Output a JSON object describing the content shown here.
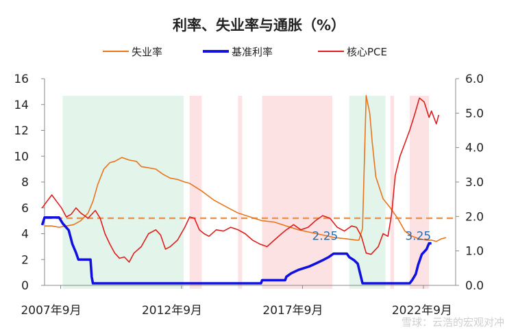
{
  "chart_data": {
    "type": "line",
    "title": "利率、失业率与通胀（%）",
    "x_tick_labels": [
      "2007年9月",
      "2012年9月",
      "2017年9月",
      "2022年9月"
    ],
    "x_ticks_date": [
      2007.667,
      2012.667,
      2017.667,
      2022.667
    ],
    "x_range": [
      2007.0,
      2024.0
    ],
    "y_left": {
      "ylim": [
        0,
        16
      ],
      "ticks": [
        "0",
        "2",
        "4",
        "6",
        "8",
        "10",
        "12",
        "14",
        "16"
      ]
    },
    "y_right": {
      "ylim": [
        0,
        6
      ],
      "ticks": [
        "0.0",
        "1.0",
        "2.0",
        "3.0",
        "4.0",
        "5.0",
        "6.0"
      ]
    },
    "legend": {
      "placement": "top"
    },
    "series": [
      {
        "name": "失业率",
        "color": "#e8741c",
        "axis": "left",
        "points": [
          [
            2007.0,
            4.6
          ],
          [
            2007.3,
            4.6
          ],
          [
            2007.6,
            4.5
          ],
          [
            2007.9,
            4.6
          ],
          [
            2008.2,
            4.7
          ],
          [
            2008.5,
            5.0
          ],
          [
            2008.8,
            5.6
          ],
          [
            2009.0,
            6.5
          ],
          [
            2009.2,
            7.8
          ],
          [
            2009.45,
            9.0
          ],
          [
            2009.7,
            9.5
          ],
          [
            2009.9,
            9.6
          ],
          [
            2010.2,
            9.9
          ],
          [
            2010.5,
            9.7
          ],
          [
            2010.8,
            9.6
          ],
          [
            2011.0,
            9.2
          ],
          [
            2011.3,
            9.1
          ],
          [
            2011.6,
            9.0
          ],
          [
            2011.9,
            8.6
          ],
          [
            2012.2,
            8.3
          ],
          [
            2012.5,
            8.2
          ],
          [
            2012.8,
            8.0
          ],
          [
            2013.0,
            7.9
          ],
          [
            2013.5,
            7.3
          ],
          [
            2014.0,
            6.6
          ],
          [
            2014.5,
            6.1
          ],
          [
            2015.0,
            5.6
          ],
          [
            2015.5,
            5.3
          ],
          [
            2016.0,
            5.0
          ],
          [
            2016.5,
            4.9
          ],
          [
            2017.0,
            4.6
          ],
          [
            2017.5,
            4.3
          ],
          [
            2018.0,
            4.1
          ],
          [
            2018.5,
            3.9
          ],
          [
            2019.0,
            3.7
          ],
          [
            2019.5,
            3.6
          ],
          [
            2019.9,
            3.5
          ],
          [
            2020.0,
            3.5
          ],
          [
            2020.15,
            4.4
          ],
          [
            2020.3,
            14.7
          ],
          [
            2020.45,
            13.3
          ],
          [
            2020.55,
            11.1
          ],
          [
            2020.7,
            8.4
          ],
          [
            2021.0,
            6.7
          ],
          [
            2021.3,
            6.0
          ],
          [
            2021.6,
            5.2
          ],
          [
            2021.9,
            4.2
          ],
          [
            2022.2,
            3.8
          ],
          [
            2022.5,
            3.6
          ],
          [
            2022.8,
            3.5
          ],
          [
            2023.0,
            3.5
          ],
          [
            2023.2,
            3.4
          ],
          [
            2023.4,
            3.6
          ],
          [
            2023.6,
            3.7
          ]
        ]
      },
      {
        "name": "基准利率",
        "color": "#1010e0",
        "axis": "right",
        "points": [
          [
            2006.9,
            1.75
          ],
          [
            2007.0,
            1.97
          ],
          [
            2007.6,
            1.97
          ],
          [
            2007.75,
            1.8
          ],
          [
            2008.0,
            1.6
          ],
          [
            2008.15,
            1.2
          ],
          [
            2008.3,
            0.95
          ],
          [
            2008.4,
            0.75
          ],
          [
            2008.9,
            0.75
          ],
          [
            2008.95,
            0.25
          ],
          [
            2009.0,
            0.06
          ],
          [
            2015.95,
            0.06
          ],
          [
            2016.0,
            0.15
          ],
          [
            2016.95,
            0.15
          ],
          [
            2017.0,
            0.25
          ],
          [
            2017.2,
            0.35
          ],
          [
            2017.5,
            0.45
          ],
          [
            2017.95,
            0.55
          ],
          [
            2018.2,
            0.63
          ],
          [
            2018.5,
            0.73
          ],
          [
            2018.75,
            0.82
          ],
          [
            2018.95,
            0.92
          ],
          [
            2019.5,
            0.92
          ],
          [
            2019.6,
            0.82
          ],
          [
            2019.8,
            0.73
          ],
          [
            2019.95,
            0.63
          ],
          [
            2020.15,
            0.06
          ],
          [
            2022.1,
            0.06
          ],
          [
            2022.2,
            0.15
          ],
          [
            2022.35,
            0.33
          ],
          [
            2022.45,
            0.6
          ],
          [
            2022.6,
            0.9
          ],
          [
            2022.8,
            1.05
          ],
          [
            2022.9,
            1.22
          ],
          [
            2023.0,
            1.22
          ]
        ]
      },
      {
        "name": "核心PCE",
        "color": "#e01b1b",
        "axis": "left",
        "points": [
          [
            2006.9,
            6.0
          ],
          [
            2007.1,
            6.5
          ],
          [
            2007.3,
            7.0
          ],
          [
            2007.5,
            6.5
          ],
          [
            2007.7,
            6.0
          ],
          [
            2007.9,
            5.3
          ],
          [
            2008.1,
            5.5
          ],
          [
            2008.3,
            6.0
          ],
          [
            2008.5,
            5.6
          ],
          [
            2008.8,
            5.2
          ],
          [
            2009.1,
            5.8
          ],
          [
            2009.3,
            5.2
          ],
          [
            2009.5,
            4.0
          ],
          [
            2009.7,
            3.2
          ],
          [
            2009.9,
            2.5
          ],
          [
            2010.1,
            2.1
          ],
          [
            2010.3,
            2.2
          ],
          [
            2010.5,
            1.8
          ],
          [
            2010.7,
            2.5
          ],
          [
            2011.0,
            3.0
          ],
          [
            2011.3,
            4.0
          ],
          [
            2011.6,
            4.3
          ],
          [
            2011.8,
            3.9
          ],
          [
            2012.0,
            2.8
          ],
          [
            2012.2,
            3.0
          ],
          [
            2012.5,
            3.5
          ],
          [
            2012.8,
            4.5
          ],
          [
            2013.0,
            5.3
          ],
          [
            2013.2,
            5.2
          ],
          [
            2013.4,
            4.3
          ],
          [
            2013.6,
            4.0
          ],
          [
            2013.8,
            3.8
          ],
          [
            2014.1,
            4.3
          ],
          [
            2014.4,
            4.2
          ],
          [
            2014.7,
            4.5
          ],
          [
            2015.0,
            4.3
          ],
          [
            2015.3,
            4.0
          ],
          [
            2015.6,
            3.5
          ],
          [
            2015.9,
            3.2
          ],
          [
            2016.2,
            3.0
          ],
          [
            2016.5,
            3.5
          ],
          [
            2016.8,
            4.0
          ],
          [
            2017.0,
            4.3
          ],
          [
            2017.3,
            4.7
          ],
          [
            2017.6,
            4.3
          ],
          [
            2017.9,
            4.5
          ],
          [
            2018.2,
            5.0
          ],
          [
            2018.5,
            5.4
          ],
          [
            2018.8,
            5.2
          ],
          [
            2019.1,
            4.5
          ],
          [
            2019.4,
            4.2
          ],
          [
            2019.7,
            4.6
          ],
          [
            2019.9,
            4.5
          ],
          [
            2020.1,
            3.8
          ],
          [
            2020.3,
            2.5
          ],
          [
            2020.5,
            2.4
          ],
          [
            2020.8,
            3.0
          ],
          [
            2021.0,
            4.0
          ],
          [
            2021.2,
            3.8
          ],
          [
            2021.35,
            5.5
          ],
          [
            2021.5,
            8.5
          ],
          [
            2021.7,
            10.0
          ],
          [
            2021.9,
            11.0
          ],
          [
            2022.1,
            12.0
          ],
          [
            2022.3,
            13.2
          ],
          [
            2022.5,
            14.5
          ],
          [
            2022.7,
            14.2
          ],
          [
            2022.9,
            13.0
          ],
          [
            2023.0,
            13.5
          ],
          [
            2023.2,
            12.5
          ],
          [
            2023.3,
            13.2
          ]
        ]
      }
    ],
    "reference_line": {
      "axis": "right",
      "value": 1.95,
      "color": "#f0924a",
      "style": "dashed"
    },
    "shaded_regions": [
      {
        "x": [
          2007.75,
          2012.75
        ],
        "color": "#e3f4ea"
      },
      {
        "x": [
          2013.0,
          2013.5
        ],
        "color": "#fde2e4"
      },
      {
        "x": [
          2015.0,
          2015.17
        ],
        "color": "#fde2e4"
      },
      {
        "x": [
          2016.0,
          2018.9
        ],
        "color": "#fde2e4"
      },
      {
        "x": [
          2019.6,
          2021.1
        ],
        "color": "#e3f4ea"
      },
      {
        "x": [
          2021.3,
          2021.45
        ],
        "color": "#fde2e4"
      },
      {
        "x": [
          2022.1,
          2022.9
        ],
        "color": "#fde2e4"
      }
    ],
    "annotations": [
      {
        "text": "2.25",
        "x": 2018.6,
        "y_right": 1.2
      },
      {
        "text": "3.25",
        "x": 2022.45,
        "y_right": 1.2
      }
    ]
  },
  "watermark": "雪球：云浩的宏观对冲"
}
